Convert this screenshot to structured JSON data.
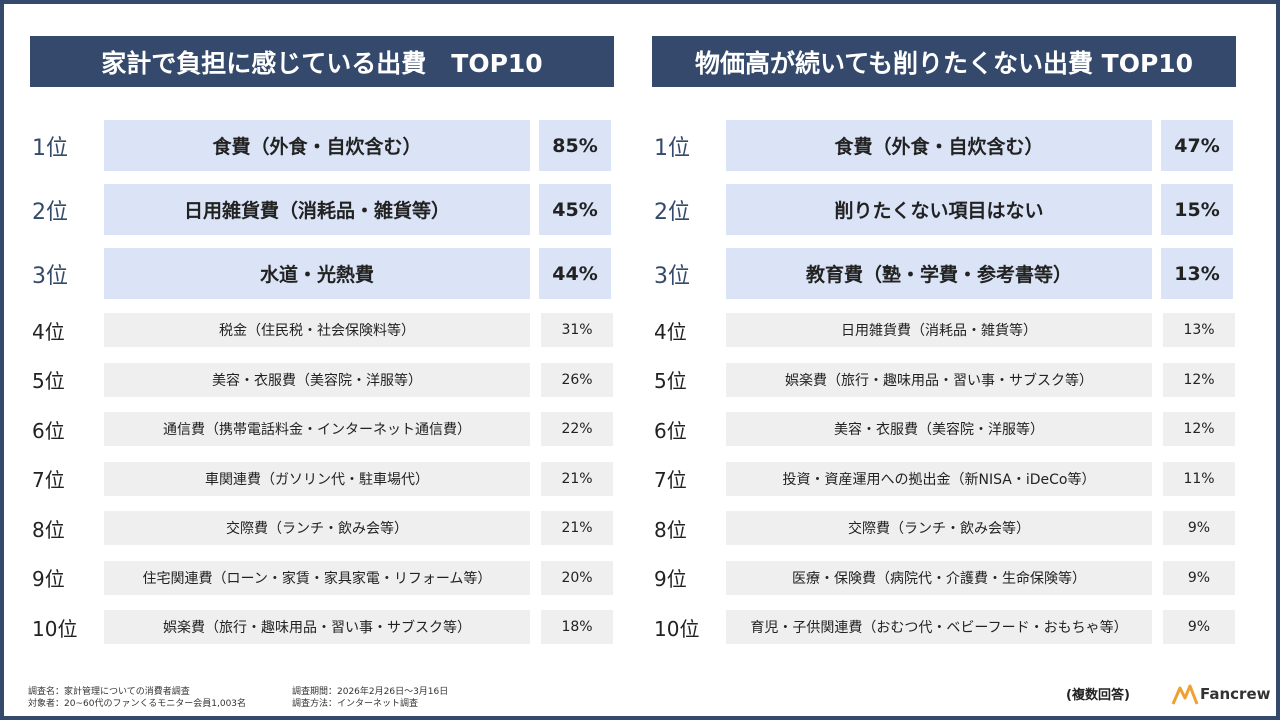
{
  "panels": [
    {
      "title": "家計で負担に感じている出費　TOP10",
      "rows": [
        {
          "rank": "1位",
          "label": "食費（外食・自炊含む）",
          "percent": "85%"
        },
        {
          "rank": "2位",
          "label": "日用雑貨費（消耗品・雑貨等）",
          "percent": "45%"
        },
        {
          "rank": "3位",
          "label": "水道・光熱費",
          "percent": "44%"
        },
        {
          "rank": "4位",
          "label": "税金（住民税・社会保険料等）",
          "percent": "31%"
        },
        {
          "rank": "5位",
          "label": "美容・衣服費（美容院・洋服等）",
          "percent": "26%"
        },
        {
          "rank": "6位",
          "label": "通信費（携帯電話料金・インターネット通信費）",
          "percent": "22%"
        },
        {
          "rank": "7位",
          "label": "車関連費（ガソリン代・駐車場代）",
          "percent": "21%"
        },
        {
          "rank": "8位",
          "label": "交際費（ランチ・飲み会等）",
          "percent": "21%"
        },
        {
          "rank": "9位",
          "label": "住宅関連費（ローン・家賃・家具家電・リフォーム等）",
          "percent": "20%"
        },
        {
          "rank": "10位",
          "label": "娯楽費（旅行・趣味用品・習い事・サブスク等）",
          "percent": "18%"
        }
      ]
    },
    {
      "title": "物価高が続いても削りたくない出費 TOP10",
      "rows": [
        {
          "rank": "1位",
          "label": "食費（外食・自炊含む）",
          "percent": "47%"
        },
        {
          "rank": "2位",
          "label": "削りたくない項目はない",
          "percent": "15%"
        },
        {
          "rank": "3位",
          "label": "教育費（塾・学費・参考書等）",
          "percent": "13%"
        },
        {
          "rank": "4位",
          "label": "日用雑貨費（消耗品・雑貨等）",
          "percent": "13%"
        },
        {
          "rank": "5位",
          "label": "娯楽費（旅行・趣味用品・習い事・サブスク等）",
          "percent": "12%"
        },
        {
          "rank": "6位",
          "label": "美容・衣服費（美容院・洋服等）",
          "percent": "12%"
        },
        {
          "rank": "7位",
          "label": "投資・資産運用への拠出金（新NISA・iDeCo等）",
          "percent": "11%"
        },
        {
          "rank": "8位",
          "label": "交際費（ランチ・飲み会等）",
          "percent": "9%"
        },
        {
          "rank": "9位",
          "label": "医療・保険費（病院代・介護費・生命保険等）",
          "percent": "9%"
        },
        {
          "rank": "10位",
          "label": "育児・子供関連費（おむつ代・ベビーフード・おもちゃ等）",
          "percent": "9%"
        }
      ]
    }
  ],
  "footer": {
    "survey": [
      "調査名：家計管理についての消費者調査",
      "対象者：20~60代のファンくるモニター会員1,003名"
    ],
    "method": [
      "調査期間：2026年2月26日～3月16日",
      "調査方法：インターネット調査"
    ],
    "note": "(複数回答)",
    "logo": "Fancrew"
  }
}
